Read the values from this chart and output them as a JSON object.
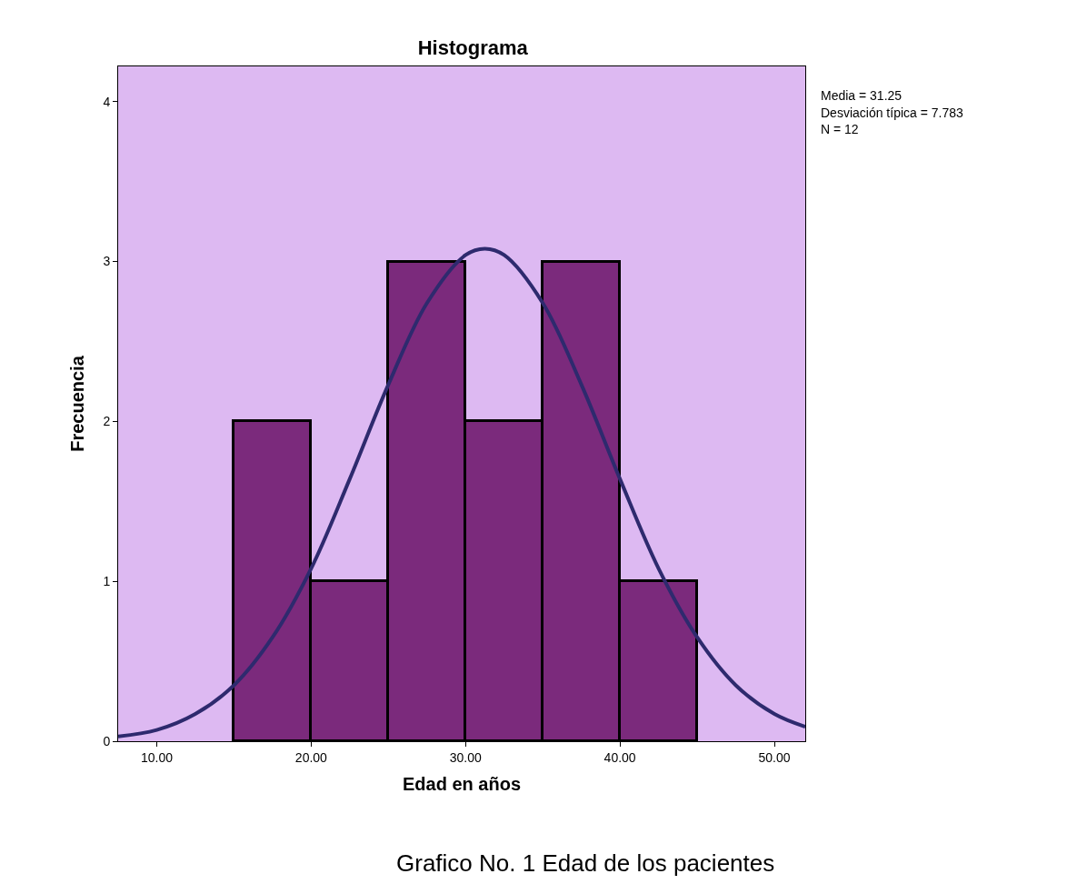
{
  "chart_data": {
    "type": "histogram",
    "title": "Histograma",
    "xlabel": "Edad en años",
    "ylabel": "Frecuencia",
    "bins": [
      15,
      20,
      25,
      30,
      35,
      40,
      45
    ],
    "values": [
      2,
      1,
      3,
      2,
      3,
      1
    ],
    "color": "#7b2a7c",
    "xlim": [
      7.5,
      52
    ],
    "ylim": [
      0,
      4.22
    ],
    "xticks": [
      {
        "value": 10,
        "label": "10.00"
      },
      {
        "value": 20,
        "label": "20.00"
      },
      {
        "value": 30,
        "label": "30.00"
      },
      {
        "value": 40,
        "label": "40.00"
      },
      {
        "value": 50,
        "label": "50.00"
      }
    ],
    "yticks": [
      0,
      1,
      2,
      3,
      4
    ],
    "series": [
      {
        "type": "line",
        "color": "#2e2a6e",
        "x": [
          7.5,
          10,
          12.5,
          15,
          17.5,
          20,
          22.5,
          25,
          27.5,
          30,
          31.25,
          32.5,
          35,
          37.5,
          40,
          42.5,
          45,
          47.5,
          50,
          52
        ],
        "values": [
          0.03,
          0.07,
          0.17,
          0.35,
          0.65,
          1.08,
          1.64,
          2.23,
          2.74,
          3.04,
          3.08,
          3.04,
          2.74,
          2.23,
          1.64,
          1.08,
          0.65,
          0.35,
          0.17,
          0.09
        ]
      }
    ],
    "annotations": [
      "Media = 31.25",
      "Desviación típica = 7.783",
      "N = 12",
      "Grafico No. 1 Edad de los pacientes"
    ],
    "grid": false
  }
}
